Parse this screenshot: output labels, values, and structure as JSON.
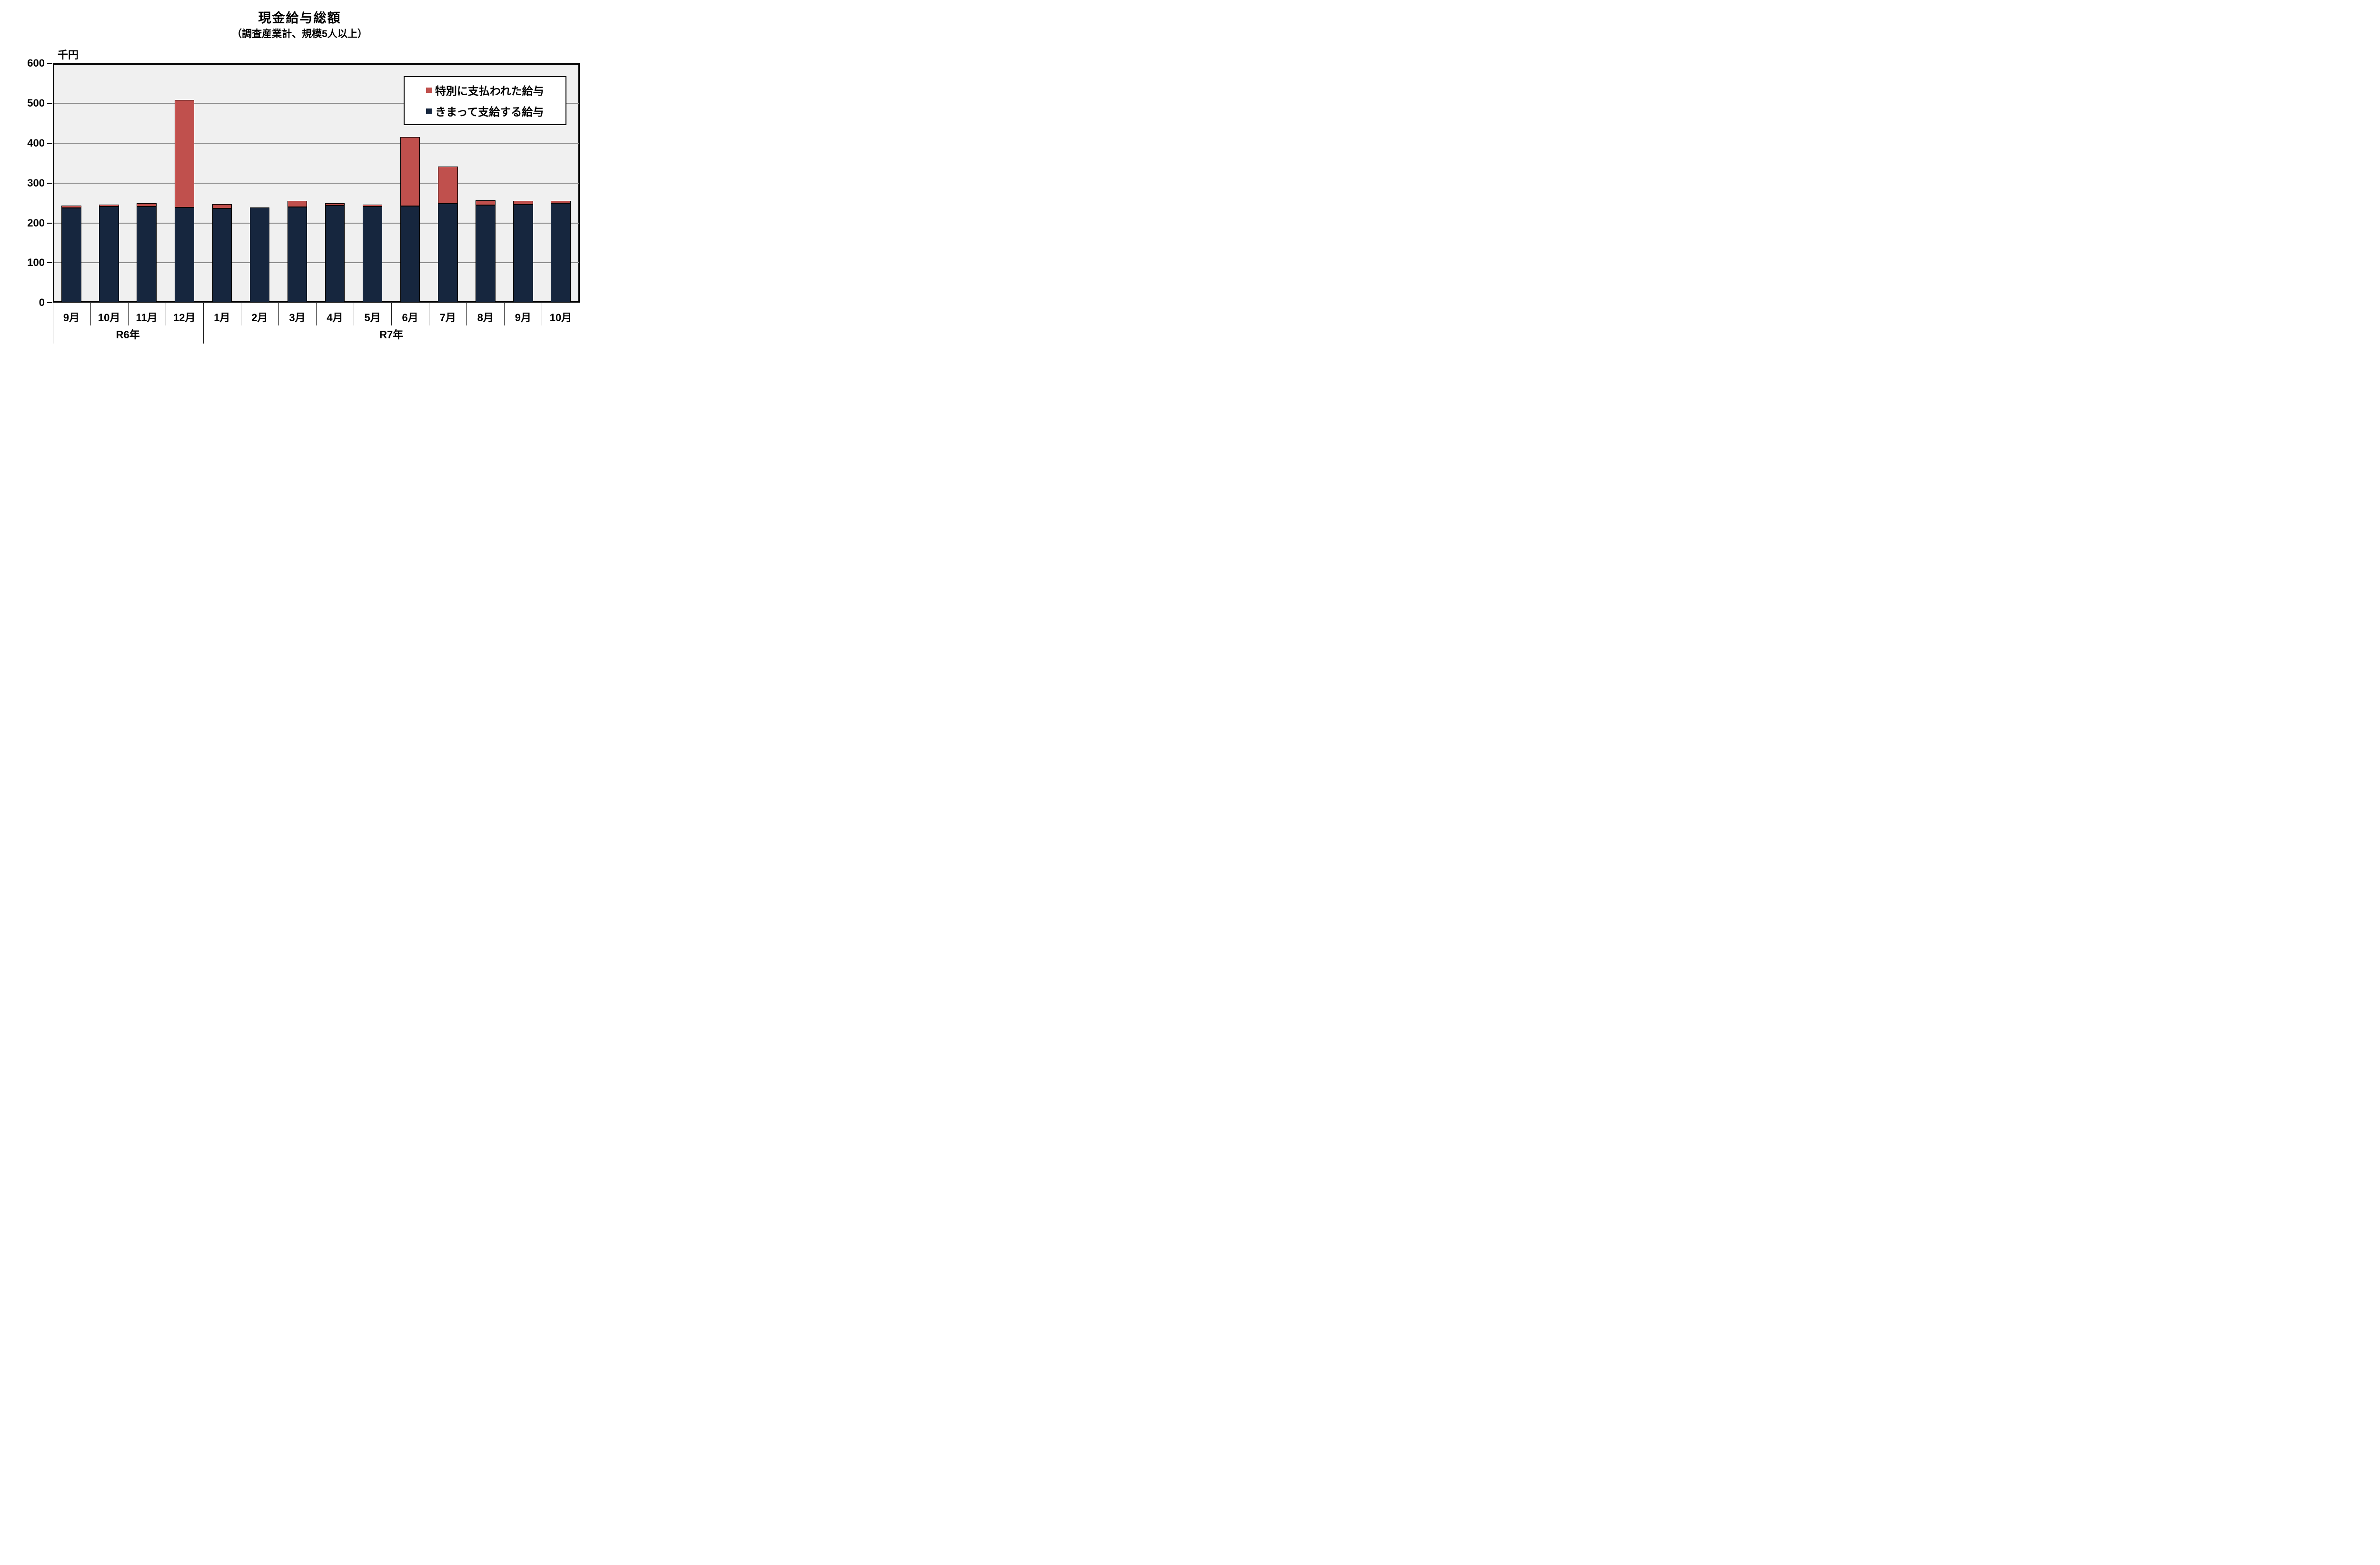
{
  "chart_data": {
    "type": "bar",
    "stacked": true,
    "title": "現金給与総額",
    "subtitle": "（調査産業計、規模5人以上）",
    "unit_label": "千円",
    "ylim": [
      0,
      600
    ],
    "ytick_interval": 100,
    "yticks": [
      0,
      100,
      200,
      300,
      400,
      500,
      600
    ],
    "grid": true,
    "categories": [
      "9月",
      "10月",
      "11月",
      "12月",
      "1月",
      "2月",
      "3月",
      "4月",
      "5月",
      "6月",
      "7月",
      "8月",
      "9月",
      "10月"
    ],
    "year_groups": [
      {
        "label": "R6年",
        "count": 4
      },
      {
        "label": "R7年",
        "count": 10
      }
    ],
    "series": [
      {
        "name": "きまって支給する給与",
        "color": "#16263E",
        "values": [
          238,
          241,
          241,
          239,
          237,
          239,
          240,
          244,
          241,
          242,
          248,
          245,
          246,
          250
        ]
      },
      {
        "name": "特別に支払われた給与",
        "color": "#C0504D",
        "values": [
          3,
          3,
          9,
          269,
          10,
          0,
          16,
          6,
          5,
          173,
          93,
          12,
          10,
          6
        ]
      }
    ],
    "totals": [
      241,
      244,
      250,
      508,
      247,
      239,
      256,
      250,
      246,
      415,
      341,
      257,
      256,
      256
    ],
    "legend": {
      "position": "inside-top-right",
      "entries": [
        {
          "label": "特別に支払われた給与",
          "color": "#C0504D"
        },
        {
          "label": "きまって支給する給与",
          "color": "#16263E"
        }
      ]
    },
    "colors": {
      "plot_bg": "#F0F0F0",
      "gridline": "#8C8C8C",
      "frame": "#000000",
      "text": "#000000"
    }
  }
}
